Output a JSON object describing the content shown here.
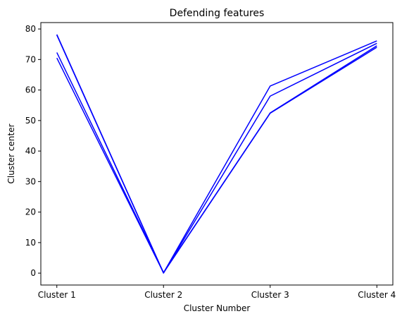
{
  "chart_data": {
    "type": "line",
    "title": "Defending features",
    "xlabel": "Cluster Number",
    "ylabel": "Cluster center",
    "categories": [
      "Cluster 1",
      "Cluster 2",
      "Cluster 3",
      "Cluster 4"
    ],
    "ylim": [
      -3.9,
      82.1
    ],
    "yticks": [
      0,
      10,
      20,
      30,
      40,
      50,
      60,
      70,
      80
    ],
    "grid": false,
    "legend": "none",
    "line_color": "#0000ff",
    "series": [
      {
        "values": [
          78.2,
          0.1,
          61.3,
          76.1
        ]
      },
      {
        "values": [
          78.0,
          0.0,
          58.0,
          75.3
        ]
      },
      {
        "values": [
          72.3,
          0.2,
          52.5,
          74.5
        ]
      },
      {
        "values": [
          70.5,
          0.1,
          52.4,
          74.0
        ]
      }
    ]
  }
}
